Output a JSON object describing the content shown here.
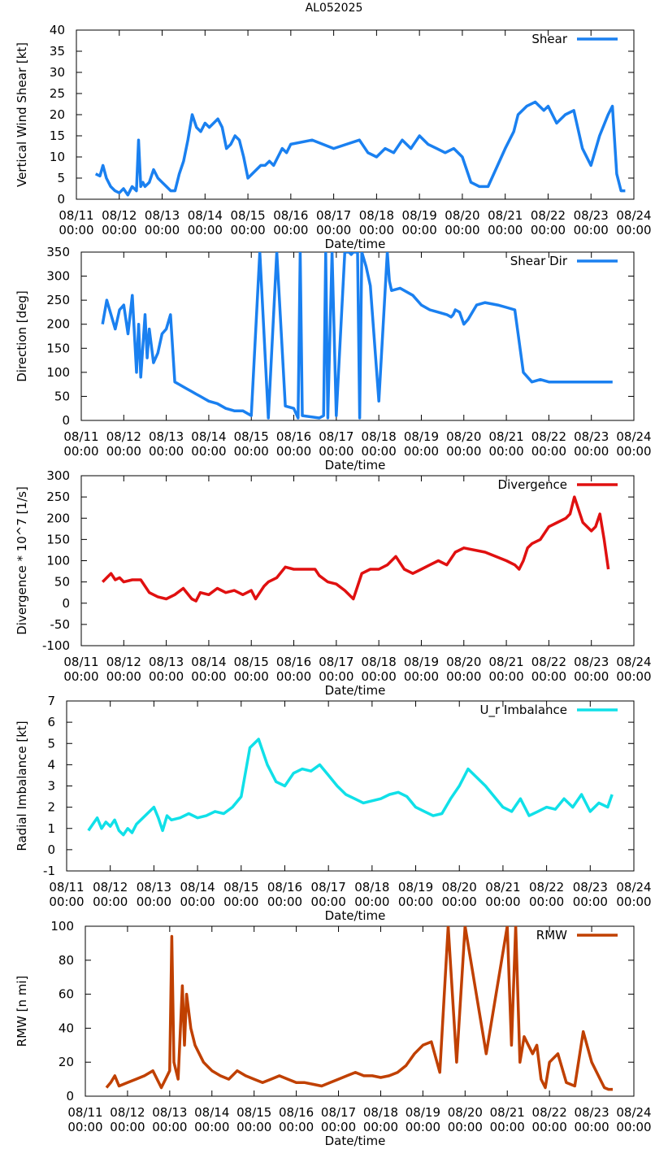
{
  "title": "AL052025",
  "xlabel": "Date/time",
  "x_ticks": [
    "08/11\n00:00",
    "08/12\n00:00",
    "08/13\n00:00",
    "08/14\n00:00",
    "08/15\n00:00",
    "08/16\n00:00",
    "08/17\n00:00",
    "08/18\n00:00",
    "08/19\n00:00",
    "08/20\n00:00",
    "08/21\n00:00",
    "08/22\n00:00",
    "08/23\n00:00",
    "08/24\n00:00"
  ],
  "x_unit": "days since 08/11 00:00",
  "chart_data": [
    {
      "type": "line",
      "ylabel": "Vertical Wind Shear [kt]",
      "legend": "Shear",
      "color": "#1a80f0",
      "ylim": [
        0,
        40
      ],
      "yticks": [
        0,
        5,
        10,
        15,
        20,
        25,
        30,
        35,
        40
      ],
      "xlim": [
        0,
        13
      ],
      "x": [
        0.45,
        0.55,
        0.62,
        0.7,
        0.8,
        0.9,
        1.0,
        1.1,
        1.2,
        1.3,
        1.4,
        1.45,
        1.5,
        1.55,
        1.6,
        1.7,
        1.8,
        1.9,
        2.0,
        2.1,
        2.2,
        2.3,
        2.4,
        2.5,
        2.6,
        2.7,
        2.8,
        2.9,
        3.0,
        3.1,
        3.2,
        3.3,
        3.4,
        3.5,
        3.6,
        3.7,
        3.8,
        3.9,
        4.0,
        4.1,
        4.2,
        4.3,
        4.4,
        4.5,
        4.6,
        4.7,
        4.8,
        4.9,
        5.0,
        5.5,
        6.0,
        6.3,
        6.6,
        6.8,
        7.0,
        7.2,
        7.4,
        7.6,
        7.8,
        8.0,
        8.2,
        8.4,
        8.6,
        8.8,
        9.0,
        9.2,
        9.4,
        9.6,
        10.0,
        10.2,
        10.3,
        10.5,
        10.7,
        10.9,
        11.0,
        11.2,
        11.4,
        11.6,
        11.8,
        12.0,
        12.2,
        12.4,
        12.5,
        12.6,
        12.7,
        12.8
      ],
      "y": [
        6,
        5.5,
        8,
        5,
        3,
        2,
        1.5,
        2.5,
        1,
        3,
        2,
        14,
        3,
        4,
        3,
        4,
        7,
        5,
        4,
        3,
        2,
        2,
        6,
        9,
        14,
        20,
        17,
        16,
        18,
        17,
        18,
        19,
        17,
        12,
        13,
        15,
        14,
        10,
        5,
        6,
        7,
        8,
        8,
        9,
        8,
        10,
        12,
        11,
        13,
        14,
        12,
        13,
        14,
        11,
        10,
        12,
        11,
        14,
        12,
        15,
        13,
        12,
        11,
        12,
        10,
        4,
        3,
        3,
        12,
        16,
        20,
        22,
        23,
        21,
        22,
        18,
        20,
        21,
        12,
        8,
        15,
        20,
        22,
        6,
        2,
        2
      ],
      "smooth": 0
    },
    {
      "type": "line",
      "ylabel": "Direction [deg]",
      "legend": "Shear Dir",
      "color": "#1a80f0",
      "ylim": [
        0,
        350
      ],
      "yticks": [
        0,
        50,
        100,
        150,
        200,
        250,
        300,
        350
      ],
      "xlim": [
        0,
        13
      ],
      "x": [
        0.5,
        0.6,
        0.7,
        0.8,
        0.9,
        1.0,
        1.1,
        1.2,
        1.3,
        1.35,
        1.4,
        1.5,
        1.55,
        1.6,
        1.7,
        1.8,
        1.9,
        2.0,
        2.1,
        2.2,
        2.3,
        2.4,
        2.5,
        2.6,
        2.7,
        2.8,
        3.0,
        3.2,
        3.4,
        3.6,
        3.8,
        4.0,
        4.2,
        4.4,
        4.6,
        4.8,
        5.0,
        5.1,
        5.15,
        5.2,
        5.6,
        5.7,
        5.75,
        5.8,
        5.9,
        6.0,
        6.2,
        6.3,
        6.35,
        6.4,
        6.45,
        6.5,
        6.55,
        6.6,
        6.7,
        6.8,
        7.0,
        7.2,
        7.25,
        7.3,
        7.5,
        7.8,
        8.0,
        8.2,
        8.4,
        8.6,
        8.7,
        8.75,
        8.8,
        8.9,
        9.0,
        9.1,
        9.3,
        9.5,
        9.8,
        10.0,
        10.2,
        10.4,
        10.6,
        10.8,
        11.0,
        11.2,
        11.4,
        11.6,
        11.8,
        12.0,
        12.2,
        12.3,
        12.4,
        12.5
      ],
      "y": [
        200,
        250,
        220,
        190,
        230,
        240,
        180,
        260,
        100,
        200,
        90,
        220,
        130,
        190,
        120,
        140,
        180,
        190,
        220,
        80,
        75,
        70,
        65,
        60,
        55,
        50,
        40,
        35,
        25,
        20,
        20,
        10,
        355,
        5,
        360,
        30,
        25,
        5,
        355,
        10,
        5,
        10,
        360,
        5,
        355,
        10,
        350,
        360,
        345,
        355,
        360,
        350,
        5,
        360,
        320,
        280,
        40,
        350,
        290,
        270,
        275,
        260,
        240,
        230,
        225,
        220,
        215,
        220,
        230,
        225,
        200,
        210,
        240,
        245,
        240,
        235,
        230,
        100,
        80,
        85,
        80,
        80,
        80,
        80,
        80,
        80,
        80,
        80,
        80,
        80
      ],
      "smooth": 0
    },
    {
      "type": "line",
      "ylabel": "Divergence * 10^7 [1/s]",
      "legend": "Divergence",
      "color": "#e01010",
      "ylim": [
        -100,
        300
      ],
      "yticks": [
        -100,
        -50,
        0,
        50,
        100,
        150,
        200,
        250,
        300
      ],
      "xlim": [
        0,
        13
      ],
      "x": [
        0.5,
        0.6,
        0.7,
        0.8,
        0.9,
        1.0,
        1.2,
        1.4,
        1.6,
        1.7,
        1.8,
        2.0,
        2.2,
        2.4,
        2.6,
        2.7,
        2.8,
        3.0,
        3.2,
        3.4,
        3.6,
        3.8,
        4.0,
        4.1,
        4.2,
        4.3,
        4.4,
        4.6,
        4.8,
        5.0,
        5.5,
        5.6,
        5.8,
        6.0,
        6.2,
        6.4,
        6.5,
        6.6,
        6.8,
        7.0,
        7.2,
        7.4,
        7.6,
        7.8,
        8.0,
        8.2,
        8.4,
        8.6,
        8.8,
        9.0,
        9.5,
        10.0,
        10.2,
        10.3,
        10.4,
        10.5,
        10.6,
        10.8,
        11.0,
        11.2,
        11.4,
        11.5,
        11.6,
        11.8,
        12.0,
        12.1,
        12.2,
        12.3,
        12.4
      ],
      "y": [
        50,
        60,
        70,
        55,
        60,
        50,
        55,
        55,
        25,
        20,
        15,
        10,
        20,
        35,
        10,
        5,
        25,
        20,
        35,
        25,
        30,
        20,
        30,
        10,
        25,
        40,
        50,
        60,
        85,
        80,
        80,
        65,
        50,
        45,
        30,
        10,
        40,
        70,
        80,
        80,
        90,
        110,
        80,
        70,
        80,
        90,
        100,
        90,
        120,
        130,
        120,
        100,
        90,
        80,
        100,
        130,
        140,
        150,
        180,
        190,
        200,
        210,
        250,
        190,
        170,
        180,
        210,
        150,
        80
      ],
      "smooth": 0
    },
    {
      "type": "line",
      "ylabel": "Radial Imbalance [kt]",
      "legend": "U_r Imbalance",
      "color": "#10e0e8",
      "ylim": [
        -1,
        7
      ],
      "yticks": [
        -1,
        0,
        1,
        2,
        3,
        4,
        5,
        6,
        7
      ],
      "xlim": [
        0,
        13
      ],
      "x": [
        0.5,
        0.6,
        0.7,
        0.8,
        0.9,
        1.0,
        1.1,
        1.2,
        1.3,
        1.4,
        1.5,
        1.6,
        1.8,
        2.0,
        2.1,
        2.2,
        2.3,
        2.4,
        2.6,
        2.8,
        3.0,
        3.2,
        3.4,
        3.6,
        3.8,
        4.0,
        4.2,
        4.4,
        4.6,
        4.8,
        5.0,
        5.2,
        5.4,
        5.6,
        5.8,
        6.0,
        6.2,
        6.4,
        6.6,
        6.8,
        7.0,
        7.2,
        7.4,
        7.6,
        7.8,
        8.0,
        8.2,
        8.4,
        8.6,
        8.8,
        9.0,
        9.2,
        9.6,
        10.0,
        10.2,
        10.4,
        10.6,
        10.8,
        11.0,
        11.2,
        11.4,
        11.6,
        11.8,
        12.0,
        12.2,
        12.4,
        12.5
      ],
      "y": [
        0.9,
        1.2,
        1.5,
        1.0,
        1.3,
        1.1,
        1.4,
        0.9,
        0.7,
        1.0,
        0.8,
        1.2,
        1.6,
        2.0,
        1.5,
        0.9,
        1.6,
        1.4,
        1.5,
        1.7,
        1.5,
        1.6,
        1.8,
        1.7,
        2.0,
        2.5,
        4.8,
        5.2,
        4.0,
        3.2,
        3.0,
        3.6,
        3.8,
        3.7,
        4.0,
        3.5,
        3.0,
        2.6,
        2.4,
        2.2,
        2.3,
        2.4,
        2.6,
        2.7,
        2.5,
        2.0,
        1.8,
        1.6,
        1.7,
        2.4,
        3.0,
        3.8,
        3.0,
        2.0,
        1.8,
        2.4,
        1.6,
        1.8,
        2.0,
        1.9,
        2.4,
        2.0,
        2.6,
        1.8,
        2.2,
        2.0,
        2.6
      ],
      "smooth": 0
    },
    {
      "type": "line",
      "ylabel": "RMW [n mi]",
      "legend": "RMW",
      "color": "#c04000",
      "ylim": [
        0,
        100
      ],
      "yticks": [
        0,
        20,
        40,
        60,
        80,
        100
      ],
      "xlim": [
        0,
        13
      ],
      "x": [
        0.5,
        0.6,
        0.7,
        0.8,
        1.0,
        1.2,
        1.4,
        1.6,
        1.8,
        1.9,
        2.0,
        2.05,
        2.1,
        2.2,
        2.3,
        2.35,
        2.4,
        2.5,
        2.6,
        2.8,
        3.0,
        3.2,
        3.4,
        3.6,
        3.8,
        4.0,
        4.2,
        4.4,
        4.6,
        4.8,
        5.0,
        5.2,
        5.4,
        5.6,
        5.8,
        6.0,
        6.2,
        6.4,
        6.6,
        6.8,
        7.0,
        7.2,
        7.4,
        7.6,
        7.8,
        8.0,
        8.2,
        8.4,
        8.6,
        8.8,
        9.0,
        9.5,
        10.0,
        10.1,
        10.2,
        10.3,
        10.4,
        10.5,
        10.6,
        10.7,
        10.8,
        10.9,
        11.0,
        11.2,
        11.4,
        11.6,
        11.8,
        12.0,
        12.2,
        12.3,
        12.4,
        12.5
      ],
      "y": [
        5,
        8,
        12,
        6,
        8,
        10,
        12,
        15,
        5,
        10,
        15,
        94,
        20,
        10,
        65,
        30,
        60,
        40,
        30,
        20,
        15,
        12,
        10,
        15,
        12,
        10,
        8,
        10,
        12,
        10,
        8,
        8,
        7,
        6,
        8,
        10,
        12,
        14,
        12,
        12,
        11,
        12,
        14,
        18,
        25,
        30,
        32,
        14,
        100,
        20,
        100,
        25,
        100,
        30,
        100,
        20,
        35,
        30,
        25,
        30,
        10,
        5,
        20,
        25,
        8,
        6,
        38,
        20,
        10,
        5,
        4,
        4
      ],
      "smooth": 0
    }
  ]
}
